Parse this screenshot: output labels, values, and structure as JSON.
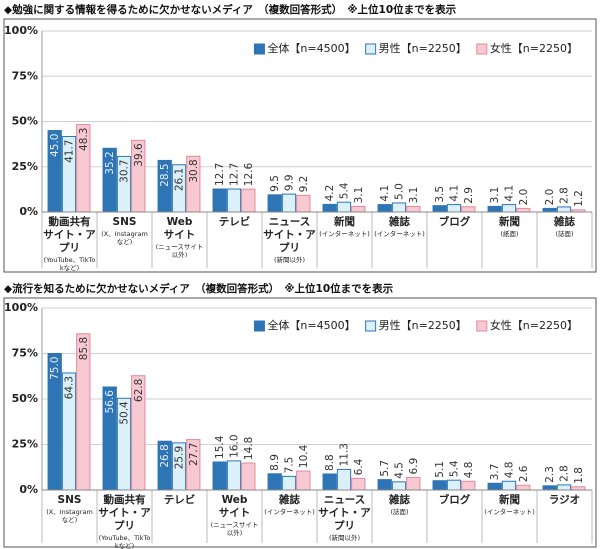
{
  "chart_data": [
    {
      "type": "bar",
      "title": "◆勉強に関する情報を得るために欠かせないメディア　（複数回答形式）　※上位10位までを表示",
      "categories": [
        "動画共有サイト・アプリ",
        "SNS",
        "Webサイト",
        "テレビ",
        "ニュースサイト・アプリ",
        "新聞",
        "雑誌",
        "ブログ",
        "新聞",
        "雑誌"
      ],
      "category_notes": [
        "(YouTube、TikTokなど)",
        "(X、Instagramなど)",
        "(ニュースサイト以外)",
        null,
        "(新聞以外)",
        "(インターネット)",
        "(インターネット)",
        null,
        "(紙面)",
        "(誌面)"
      ],
      "series": [
        {
          "name": "全体【n=4500】",
          "color": "#2e75b6",
          "edgecolor": "#2e75b6",
          "values": [
            45.0,
            35.2,
            28.5,
            12.7,
            9.5,
            4.2,
            4.1,
            3.5,
            3.1,
            2.0
          ],
          "value_labels": [
            "45.0",
            "35.2",
            "28.5",
            "12.7",
            "9.5",
            "4.2",
            "4.1",
            "3.5",
            "3.1",
            "2.0"
          ]
        },
        {
          "name": "男性【n=2250】",
          "color": "#dcf0fa",
          "edgecolor": "#2e75b6",
          "values": [
            41.7,
            30.7,
            26.1,
            12.7,
            9.9,
            5.4,
            5.0,
            4.1,
            4.1,
            2.8
          ],
          "value_labels": [
            "41.7",
            "30.7",
            "26.1",
            "12.7",
            "9.9",
            "5.4",
            "5.0",
            "4.1",
            "4.1",
            "2.8"
          ]
        },
        {
          "name": "女性【n=2250】",
          "color": "#f8c9d2",
          "edgecolor": "#e0899b",
          "values": [
            48.3,
            39.6,
            30.8,
            12.6,
            9.2,
            3.1,
            3.1,
            2.9,
            2.0,
            1.2
          ],
          "value_labels": [
            "48.3",
            "39.6",
            "30.8",
            "12.6",
            "9.2",
            "3.1",
            "3.1",
            "2.9",
            "2.0",
            "1.2"
          ]
        }
      ],
      "ylim": [
        0,
        100
      ],
      "yticks": [
        {
          "value": 0,
          "label": "0%"
        },
        {
          "value": 25,
          "label": "25%"
        },
        {
          "value": 50,
          "label": "50%"
        },
        {
          "value": 75,
          "label": "75%"
        },
        {
          "value": 100,
          "label": "100%"
        }
      ],
      "grid": true,
      "legend": "top-right"
    },
    {
      "type": "bar",
      "title": "◆流行を知るために欠かせないメディア　（複数回答形式）　※上位10位までを表示",
      "categories": [
        "SNS",
        "動画共有サイト・アプリ",
        "テレビ",
        "Webサイト",
        "雑誌",
        "ニュースサイト・アプリ",
        "雑誌",
        "ブログ",
        "新聞",
        "ラジオ"
      ],
      "category_notes": [
        "(X、Instagramなど)",
        "(YouTube、TikTokなど)",
        null,
        "(ニュースサイト以外)",
        "(インターネット)",
        "(新聞以外)",
        "(誌面)",
        null,
        "(インターネット)",
        null
      ],
      "series": [
        {
          "name": "全体【n=4500】",
          "color": "#2e75b6",
          "edgecolor": "#2e75b6",
          "values": [
            75.0,
            56.6,
            26.8,
            15.4,
            8.9,
            8.8,
            5.7,
            5.1,
            3.7,
            2.3
          ],
          "value_labels": [
            "75.0",
            "56.6",
            "26.8",
            "15.4",
            "8.9",
            "8.8",
            "5.7",
            "5.1",
            "3.7",
            "2.3"
          ]
        },
        {
          "name": "男性【n=2250】",
          "color": "#dcf0fa",
          "edgecolor": "#2e75b6",
          "values": [
            64.3,
            50.4,
            25.9,
            16.0,
            7.5,
            11.3,
            4.5,
            5.4,
            4.8,
            2.8
          ],
          "value_labels": [
            "64.3",
            "50.4",
            "25.9",
            "16.0",
            "7.5",
            "11.3",
            "4.5",
            "5.4",
            "4.8",
            "2.8"
          ]
        },
        {
          "name": "女性【n=2250】",
          "color": "#f8c9d2",
          "edgecolor": "#e0899b",
          "values": [
            85.8,
            62.8,
            27.7,
            14.8,
            10.4,
            6.4,
            6.9,
            4.8,
            2.6,
            1.8
          ],
          "value_labels": [
            "85.8",
            "62.8",
            "27.7",
            "14.8",
            "10.4",
            "6.4",
            "6.9",
            "4.8",
            "2.6",
            "1.8"
          ]
        }
      ],
      "ylim": [
        0,
        100
      ],
      "yticks": [
        {
          "value": 0,
          "label": "0%"
        },
        {
          "value": 25,
          "label": "25%"
        },
        {
          "value": 50,
          "label": "50%"
        },
        {
          "value": 75,
          "label": "75%"
        },
        {
          "value": 100,
          "label": "100%"
        }
      ],
      "grid": true,
      "legend": "top-right"
    }
  ]
}
